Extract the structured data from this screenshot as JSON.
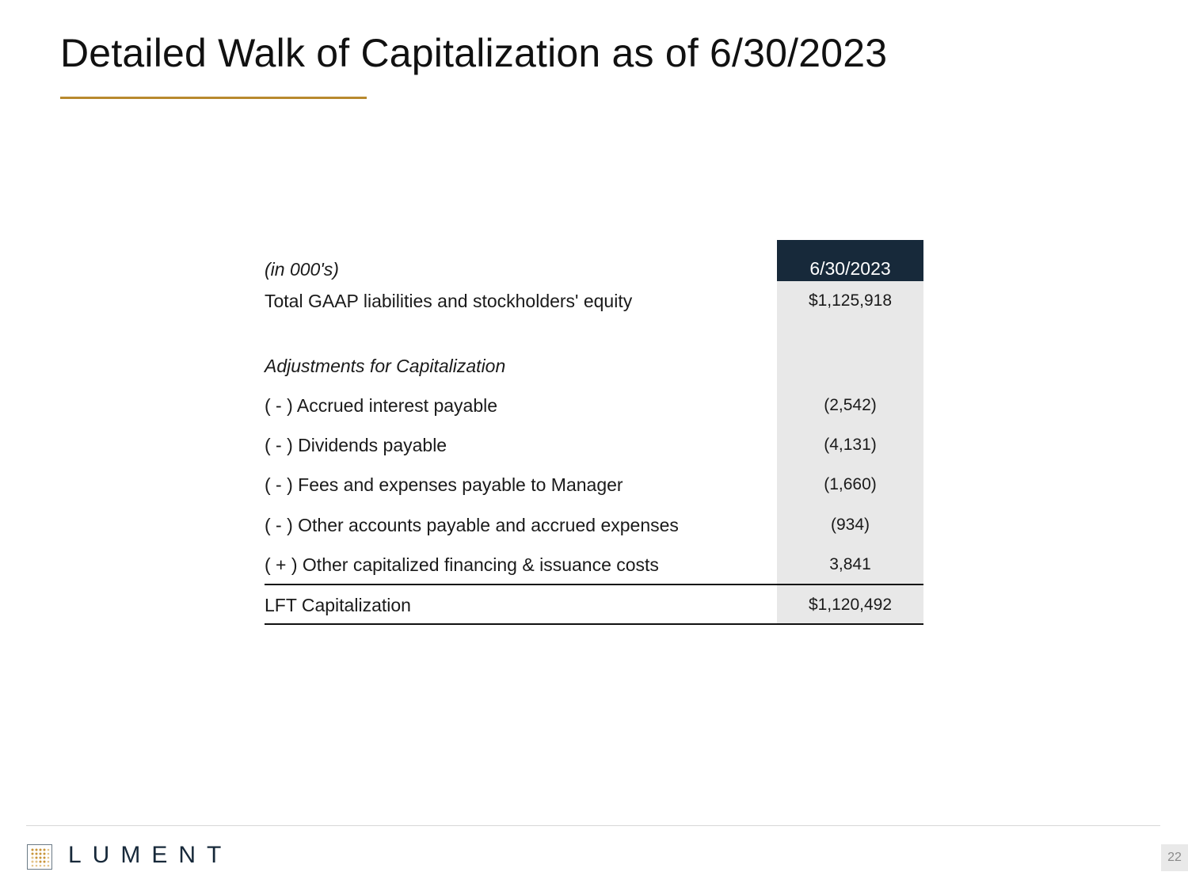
{
  "page": {
    "title": "Detailed Walk of Capitalization as of 6/30/2023",
    "accent_color": "#b8892e",
    "header_fill": "#17293a"
  },
  "table": {
    "units_label": "(in 000's)",
    "column_header": "6/30/2023",
    "rows": [
      {
        "label": "Total GAAP liabilities and stockholders' equity",
        "value": "$1,125,918"
      },
      {
        "label": "Adjustments for Capitalization",
        "value": ""
      },
      {
        "label": "( - ) Accrued interest payable",
        "value": "(2,542)"
      },
      {
        "label": "( - ) Dividends payable",
        "value": "(4,131)"
      },
      {
        "label": "( - ) Fees and expenses payable to Manager",
        "value": "(1,660)"
      },
      {
        "label": "( - ) Other accounts payable and accrued expenses",
        "value": "(934)"
      },
      {
        "label": "( + ) Other capitalized financing & issuance costs",
        "value": "3,841"
      }
    ],
    "total": {
      "label": "LFT Capitalization",
      "value": "$1,120,492"
    }
  },
  "footer": {
    "logo_text": "LUMENT",
    "logo_icon": "dot-grid-logo-icon",
    "page_number": "22"
  }
}
